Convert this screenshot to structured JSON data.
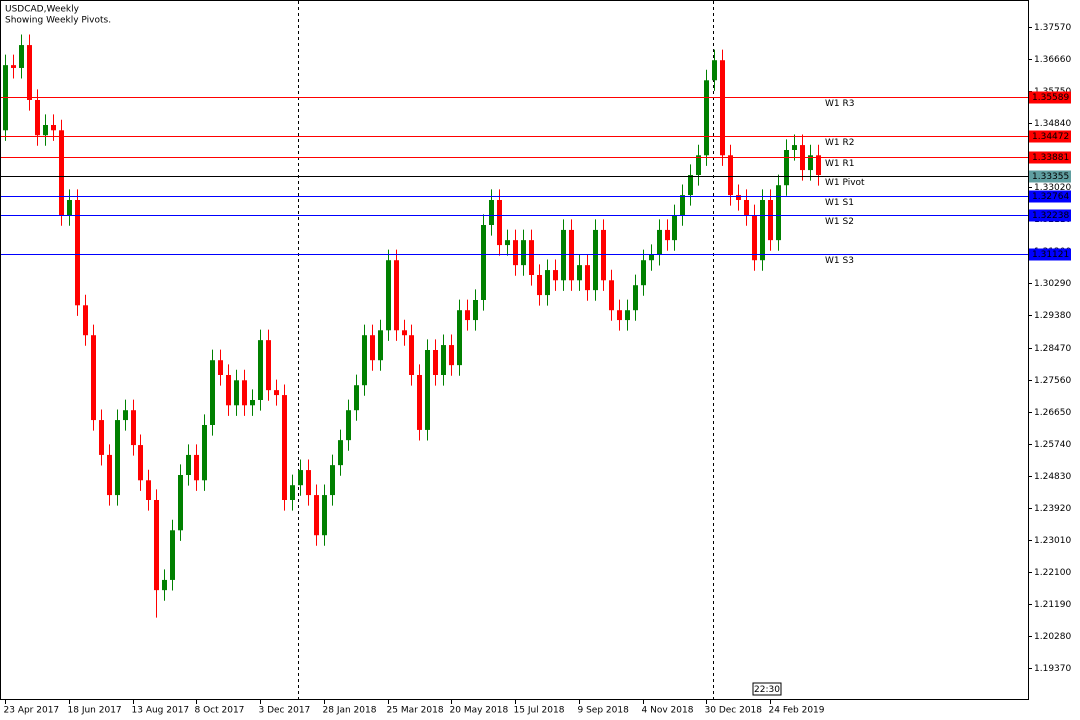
{
  "chart_data": {
    "type": "candlestick",
    "title": "USDCAD,Weekly",
    "subtitle": "Showing Weekly Pivots.",
    "categories": [
      "23 Apr 2017",
      null,
      null,
      null,
      null,
      null,
      null,
      null,
      "18 Jun 2017",
      null,
      null,
      null,
      null,
      null,
      null,
      null,
      "13 Aug 2017",
      null,
      null,
      null,
      null,
      null,
      null,
      null,
      "8 Oct 2017",
      null,
      null,
      null,
      null,
      null,
      null,
      null,
      "3 Dec 2017",
      null,
      null,
      null,
      null,
      null,
      null,
      null,
      "28 Jan 2018",
      null,
      null,
      null,
      null,
      null,
      null,
      null,
      "25 Mar 2018",
      null,
      null,
      null,
      null,
      null,
      null,
      null,
      "20 May 2018",
      null,
      null,
      null,
      null,
      null,
      null,
      null,
      "15 Jul 2018",
      null,
      null,
      null,
      null,
      null,
      null,
      null,
      "9 Sep 2018",
      null,
      null,
      null,
      null,
      null,
      null,
      null,
      "4 Nov 2018",
      null,
      null,
      null,
      null,
      null,
      null,
      null,
      "30 Dec 2018",
      null,
      null,
      null,
      null,
      null,
      null,
      null,
      "24 Feb 2019",
      null,
      null,
      null,
      null,
      null,
      null
    ],
    "open": [
      1.3464,
      1.3649,
      1.3641,
      1.3706,
      1.355,
      1.345,
      1.3479,
      1.3464,
      1.3223,
      1.3266,
      1.2967,
      1.2882,
      1.2641,
      1.2542,
      1.2428,
      1.2641,
      1.2669,
      1.257,
      1.247,
      1.2414,
      1.2158,
      1.2187,
      1.2328,
      1.2485,
      1.2542,
      1.247,
      1.2627,
      1.2811,
      1.2769,
      1.2683,
      1.2754,
      1.2683,
      1.2698,
      1.2868,
      1.2726,
      1.2712,
      1.2414,
      1.2456,
      1.2499,
      1.2428,
      1.2314,
      1.2428,
      1.2513,
      1.2584,
      1.2669,
      1.274,
      1.2882,
      1.2811,
      1.2896,
      1.3095,
      1.2896,
      1.2882,
      1.2769,
      1.2613,
      1.284,
      1.2769,
      1.2854,
      1.2797,
      1.2953,
      1.2925,
      1.2982,
      1.3195,
      1.3266,
      1.3138,
      1.3152,
      1.3081,
      1.3152,
      1.3053,
      1.2996,
      1.3067,
      1.3038,
      1.3181,
      1.3038,
      1.3081,
      1.301,
      1.3181,
      1.3038,
      1.2953,
      1.2925,
      1.2953,
      1.3024,
      1.3095,
      1.311,
      1.3181,
      1.3152,
      1.3223,
      1.328,
      1.3337,
      1.3393,
      1.3606,
      1.3663,
      1.3393,
      1.328,
      1.3266,
      1.3223,
      1.3095,
      1.3266,
      1.3152,
      1.3308,
      1.3408,
      1.3422,
      1.3351,
      1.3393
    ],
    "high": [
      1.3679,
      1.3679,
      1.3736,
      1.3736,
      1.358,
      1.3509,
      1.3509,
      1.3494,
      1.3296,
      1.3296,
      1.2997,
      1.2912,
      1.2671,
      1.2572,
      1.2671,
      1.2699,
      1.2699,
      1.26,
      1.25,
      1.2444,
      1.2217,
      1.2358,
      1.2515,
      1.2572,
      1.2572,
      1.2657,
      1.2841,
      1.2841,
      1.2799,
      1.2784,
      1.2784,
      1.2728,
      1.2898,
      1.2898,
      1.2756,
      1.2742,
      1.2486,
      1.2529,
      1.2529,
      1.2458,
      1.2458,
      1.2543,
      1.2614,
      1.2699,
      1.277,
      1.2912,
      1.2912,
      1.2926,
      1.3125,
      1.3125,
      1.2926,
      1.2912,
      1.2799,
      1.287,
      1.287,
      1.2884,
      1.2884,
      1.2983,
      1.2983,
      1.3012,
      1.3225,
      1.3296,
      1.3296,
      1.3182,
      1.3182,
      1.3182,
      1.3182,
      1.3083,
      1.3097,
      1.3097,
      1.3211,
      1.3211,
      1.3111,
      1.3111,
      1.3211,
      1.3211,
      1.3068,
      1.2983,
      1.2983,
      1.3054,
      1.3125,
      1.314,
      1.3211,
      1.3211,
      1.3253,
      1.331,
      1.3367,
      1.3423,
      1.3636,
      1.3693,
      1.3693,
      1.3423,
      1.331,
      1.3296,
      1.3253,
      1.3296,
      1.3296,
      1.3338,
      1.3438,
      1.3452,
      1.3452,
      1.3423,
      1.3423
    ],
    "low": [
      1.3434,
      1.3611,
      1.3611,
      1.352,
      1.342,
      1.342,
      1.3434,
      1.3193,
      1.3193,
      1.2937,
      1.2852,
      1.2611,
      1.2512,
      1.2398,
      1.2398,
      1.2611,
      1.254,
      1.244,
      1.2384,
      1.208,
      1.2128,
      1.2157,
      1.2298,
      1.2455,
      1.244,
      1.244,
      1.2597,
      1.2739,
      1.2653,
      1.2653,
      1.2653,
      1.2653,
      1.2668,
      1.2696,
      1.2682,
      1.2384,
      1.2384,
      1.2426,
      1.2398,
      1.2284,
      1.2284,
      1.2398,
      1.2483,
      1.2554,
      1.2639,
      1.271,
      1.2781,
      1.2781,
      1.2866,
      1.2866,
      1.2852,
      1.2739,
      1.2583,
      1.2583,
      1.2739,
      1.2739,
      1.2767,
      1.2767,
      1.2895,
      1.2895,
      1.2952,
      1.3165,
      1.3108,
      1.3108,
      1.3051,
      1.3051,
      1.3023,
      1.2966,
      1.2966,
      1.3008,
      1.3008,
      1.3008,
      1.3008,
      1.298,
      1.298,
      1.3008,
      1.2923,
      1.2895,
      1.2895,
      1.2923,
      1.2994,
      1.3065,
      1.308,
      1.3122,
      1.3122,
      1.3193,
      1.325,
      1.3307,
      1.3363,
      1.3576,
      1.3363,
      1.325,
      1.3236,
      1.3193,
      1.3065,
      1.3065,
      1.3122,
      1.3122,
      1.3278,
      1.3378,
      1.3321,
      1.3321,
      1.3307
    ],
    "close": [
      1.3649,
      1.3641,
      1.3706,
      1.355,
      1.345,
      1.3479,
      1.3464,
      1.3223,
      1.3266,
      1.2967,
      1.2882,
      1.2641,
      1.2542,
      1.2428,
      1.2641,
      1.2669,
      1.257,
      1.247,
      1.2414,
      1.2158,
      1.2187,
      1.2328,
      1.2485,
      1.2542,
      1.247,
      1.2627,
      1.2811,
      1.2769,
      1.2683,
      1.2754,
      1.2683,
      1.2698,
      1.2868,
      1.2726,
      1.2712,
      1.2414,
      1.2456,
      1.2499,
      1.2428,
      1.2314,
      1.2428,
      1.2513,
      1.2584,
      1.2669,
      1.274,
      1.2882,
      1.2811,
      1.2896,
      1.3095,
      1.2896,
      1.2882,
      1.2769,
      1.2613,
      1.284,
      1.2769,
      1.2854,
      1.2797,
      1.2953,
      1.2925,
      1.2982,
      1.3195,
      1.3266,
      1.3138,
      1.3152,
      1.3081,
      1.3152,
      1.3053,
      1.2996,
      1.3067,
      1.3038,
      1.3181,
      1.3038,
      1.3081,
      1.301,
      1.3181,
      1.3038,
      1.2953,
      1.2925,
      1.2953,
      1.3024,
      1.3095,
      1.311,
      1.3181,
      1.3152,
      1.3223,
      1.328,
      1.3337,
      1.3393,
      1.3606,
      1.3663,
      1.3393,
      1.328,
      1.3266,
      1.3223,
      1.3095,
      1.3266,
      1.3152,
      1.3308,
      1.3408,
      1.3422,
      1.3351,
      1.3393,
      1.3337
    ],
    "up_color": "#008000",
    "down_color": "#ff0000",
    "ylim": [
      1.1846,
      1.3834
    ],
    "yticks": [
      {
        "value": 1.3757,
        "label": "1.37570"
      },
      {
        "value": 1.3666,
        "label": "1.36660"
      },
      {
        "value": 1.3575,
        "label": "1.35750"
      },
      {
        "value": 1.3484,
        "label": "1.34840"
      },
      {
        "value": 1.3393,
        "label": "1.33930"
      },
      {
        "value": 1.3302,
        "label": "1.33020"
      },
      {
        "value": 1.3211,
        "label": "1.32110"
      },
      {
        "value": 1.312,
        "label": "1.31200"
      },
      {
        "value": 1.3029,
        "label": "1.30290"
      },
      {
        "value": 1.2938,
        "label": "1.29380"
      },
      {
        "value": 1.2847,
        "label": "1.28470"
      },
      {
        "value": 1.2756,
        "label": "1.27560"
      },
      {
        "value": 1.2665,
        "label": "1.26650"
      },
      {
        "value": 1.2574,
        "label": "1.25740"
      },
      {
        "value": 1.2483,
        "label": "1.24830"
      },
      {
        "value": 1.2392,
        "label": "1.23920"
      },
      {
        "value": 1.2301,
        "label": "1.23010"
      },
      {
        "value": 1.221,
        "label": "1.22100"
      },
      {
        "value": 1.2119,
        "label": "1.21190"
      },
      {
        "value": 1.2028,
        "label": "1.20280"
      },
      {
        "value": 1.1937,
        "label": "1.19370"
      }
    ],
    "levels": [
      {
        "name": "W1 R3",
        "value": 1.35589,
        "color": "#ff0000",
        "text_color": "#ff0000"
      },
      {
        "name": "W1 R2",
        "value": 1.34472,
        "color": "#ff0000",
        "text_color": "#ff0000"
      },
      {
        "name": "W1 R1",
        "value": 1.33881,
        "color": "#ff0000",
        "text_color": "#ff0000"
      },
      {
        "name": "W1 Pivot",
        "value": 1.33355,
        "color": "#000000",
        "text_color": "#5f9ea0"
      },
      {
        "name": "W1 S1",
        "value": 1.32764,
        "color": "#0000ff",
        "text_color": "#0000ff"
      },
      {
        "name": "W1 S2",
        "value": 1.32238,
        "color": "#0000ff",
        "text_color": "#0000ff"
      },
      {
        "name": "W1 S3",
        "value": 1.31121,
        "color": "#0000ff",
        "text_color": "#0000ff"
      }
    ],
    "time_marker": "22:30"
  }
}
